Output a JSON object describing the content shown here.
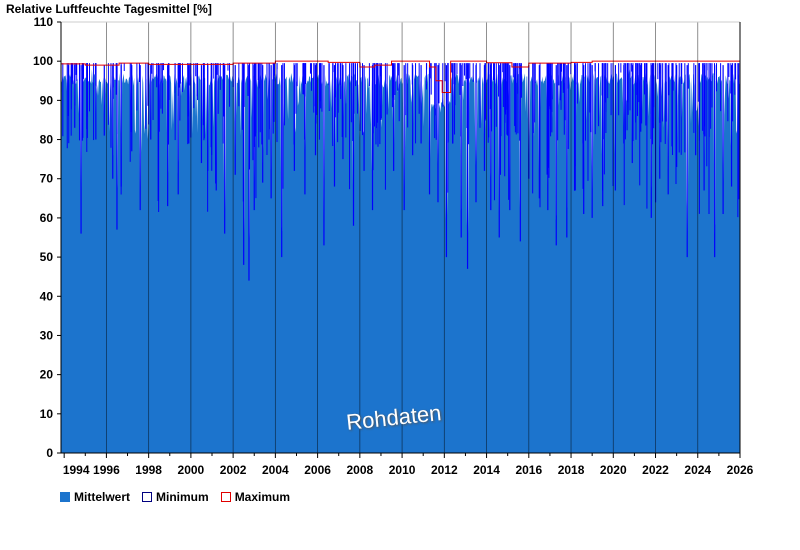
{
  "title": "Relative Luftfeuchte Tagesmittel [%]",
  "watermark": "Rohdaten",
  "colors": {
    "mean": "#1c74cd",
    "minimum": "#0000ff",
    "maximum": "#e00000",
    "grid": "#000000"
  },
  "legend": [
    {
      "label": "Mittelwert",
      "color": "#1c74cd",
      "style": "filled"
    },
    {
      "label": "Minimum",
      "color": "#000080",
      "style": "outline"
    },
    {
      "label": "Maximum",
      "color": "#e00000",
      "style": "outline"
    }
  ],
  "chart_data": {
    "type": "area",
    "title": "Relative Luftfeuchte Tagesmittel [%]",
    "xlabel": "",
    "ylabel": "",
    "xlim": [
      1993.85,
      2026.0
    ],
    "ylim": [
      0,
      110
    ],
    "yticks": [
      0,
      10,
      20,
      30,
      40,
      50,
      60,
      70,
      80,
      90,
      100,
      110
    ],
    "xticks": [
      "1994",
      "1996",
      "1998",
      "2000",
      "2002",
      "2004",
      "2006",
      "2008",
      "2010",
      "2012",
      "2014",
      "2016",
      "2018",
      "2020",
      "2022",
      "2024",
      "2026"
    ],
    "grid": "vertical lines at even years",
    "legend_position": "bottom-left",
    "series": [
      {
        "name": "Mittelwert",
        "kind": "area",
        "approx_level": 96,
        "low_range": [
          44,
          100
        ]
      },
      {
        "name": "Minimum",
        "kind": "spikes",
        "values_note": "downward spikes to ~44-100"
      },
      {
        "name": "Maximum",
        "kind": "step",
        "values": [
          [
            1993.85,
            99.3
          ],
          [
            1995.0,
            99.0
          ],
          [
            1996.6,
            99.5
          ],
          [
            1998.0,
            99.2
          ],
          [
            2002.0,
            99.5
          ],
          [
            2004.0,
            100.0
          ],
          [
            2006.5,
            99.7
          ],
          [
            2008.0,
            98.5
          ],
          [
            2008.7,
            99.0
          ],
          [
            2009.5,
            100.0
          ],
          [
            2011.3,
            98.5
          ],
          [
            2011.6,
            95.0
          ],
          [
            2011.9,
            92.0
          ],
          [
            2012.3,
            100.0
          ],
          [
            2014.0,
            99.6
          ],
          [
            2015.2,
            98.5
          ],
          [
            2016.0,
            99.5
          ],
          [
            2018.0,
            99.7
          ],
          [
            2019.0,
            100.0
          ],
          [
            2025.7,
            100.0
          ]
        ]
      }
    ],
    "low_spikes": [
      [
        1994.2,
        86
      ],
      [
        1994.5,
        83
      ],
      [
        1994.8,
        56
      ],
      [
        1995.5,
        80
      ],
      [
        1995.9,
        81
      ],
      [
        1996.3,
        70
      ],
      [
        1996.5,
        57
      ],
      [
        1996.7,
        68
      ],
      [
        1997.2,
        77
      ],
      [
        1997.6,
        62
      ],
      [
        1998.1,
        80
      ],
      [
        1998.5,
        82
      ],
      [
        1998.9,
        63
      ],
      [
        1999.4,
        66
      ],
      [
        1999.9,
        79
      ],
      [
        2000.5,
        74
      ],
      [
        2000.8,
        72
      ],
      [
        2001.2,
        67
      ],
      [
        2001.6,
        56
      ],
      [
        2002.1,
        71
      ],
      [
        2002.5,
        48
      ],
      [
        2002.75,
        44
      ],
      [
        2003.0,
        62
      ],
      [
        2003.4,
        69
      ],
      [
        2003.8,
        65
      ],
      [
        2004.3,
        50
      ],
      [
        2004.9,
        72
      ],
      [
        2005.4,
        66
      ],
      [
        2005.9,
        76
      ],
      [
        2006.3,
        53
      ],
      [
        2006.8,
        68
      ],
      [
        2007.2,
        75
      ],
      [
        2007.7,
        58
      ],
      [
        2008.2,
        72
      ],
      [
        2008.6,
        62
      ],
      [
        2009.0,
        85
      ],
      [
        2009.6,
        72
      ],
      [
        2010.1,
        62
      ],
      [
        2010.5,
        76
      ],
      [
        2010.9,
        79
      ],
      [
        2011.3,
        66
      ],
      [
        2011.7,
        64
      ],
      [
        2012.1,
        50
      ],
      [
        2012.4,
        79
      ],
      [
        2012.8,
        55
      ],
      [
        2013.1,
        47
      ],
      [
        2013.5,
        64
      ],
      [
        2013.9,
        72
      ],
      [
        2014.2,
        62
      ],
      [
        2014.6,
        55
      ],
      [
        2015.1,
        62
      ],
      [
        2015.6,
        54
      ],
      [
        2016.0,
        70
      ],
      [
        2016.5,
        65
      ],
      [
        2016.9,
        62
      ],
      [
        2017.3,
        53
      ],
      [
        2017.8,
        55
      ],
      [
        2018.2,
        67
      ],
      [
        2018.6,
        61
      ],
      [
        2019.0,
        60
      ],
      [
        2019.5,
        63
      ],
      [
        2020.1,
        67
      ],
      [
        2020.5,
        79
      ],
      [
        2020.9,
        74
      ],
      [
        2021.3,
        82
      ],
      [
        2021.8,
        60
      ],
      [
        2022.2,
        70
      ],
      [
        2022.6,
        66
      ],
      [
        2023.0,
        73
      ],
      [
        2023.5,
        50
      ],
      [
        2023.9,
        76
      ],
      [
        2024.3,
        67
      ],
      [
        2024.8,
        50
      ],
      [
        2025.2,
        61
      ],
      [
        2025.6,
        68
      ]
    ]
  }
}
